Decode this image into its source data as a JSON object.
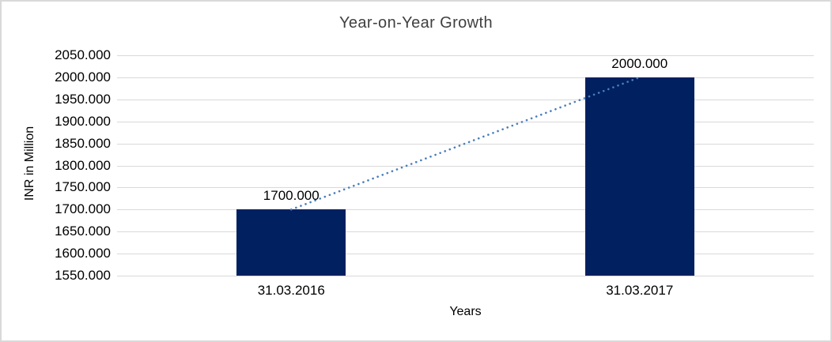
{
  "window": {
    "background": "#ffffff",
    "border_color": "#d9d9d9"
  },
  "chart_data": {
    "type": "bar",
    "title": "Year-on-Year Growth",
    "xlabel": "Years",
    "ylabel": "INR in Million",
    "categories": [
      "31.03.2016",
      "31.03.2017"
    ],
    "values": [
      1700,
      2000
    ],
    "data_labels": [
      "1700.000",
      "2000.000"
    ],
    "yticks": [
      "2050.000",
      "2000.000",
      "1950.000",
      "1900.000",
      "1850.000",
      "1800.000",
      "1750.000",
      "1700.000",
      "1650.000",
      "1600.000",
      "1550.000"
    ],
    "ylim": [
      1550,
      2050
    ],
    "ytick_step": 50,
    "grid": true,
    "legend": "none",
    "bar_color": "#002060",
    "gridline_color": "#d9d9d9",
    "text_color": "#000000",
    "title_color": "#404040",
    "trendline": {
      "style": "dotted",
      "color": "#4a7ebb",
      "connects_values": [
        1700,
        2000
      ]
    }
  }
}
